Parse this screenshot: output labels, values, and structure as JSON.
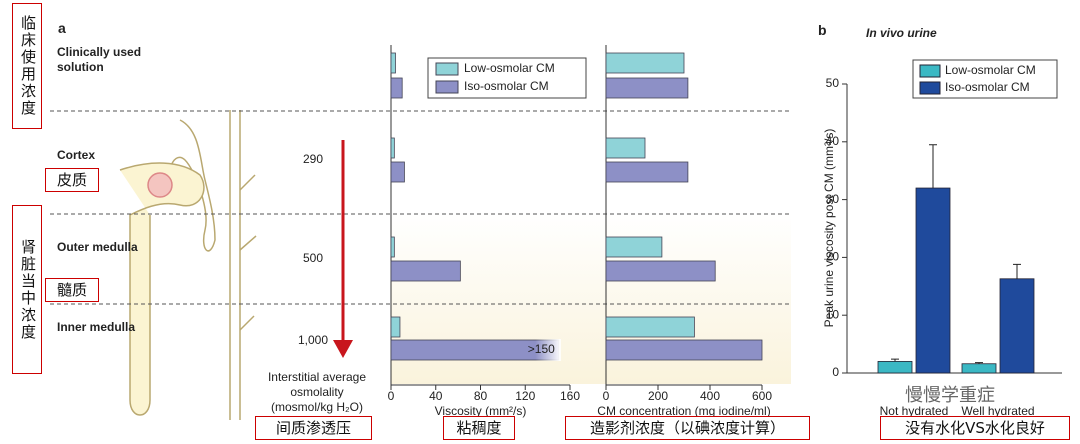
{
  "panel_labels": [
    "a",
    "b"
  ],
  "region_header": "Interstitial average osmolality (mosmol/kg H₂O)",
  "osmolality": [
    "290",
    "500",
    "1,000"
  ],
  "annotations": {
    "clinical": "临床使用浓度",
    "cortex": "皮质",
    "kidney": "肾脏当中浓度",
    "medulla": "髓质",
    "osmolality": "间质渗透压",
    "viscosity": "粘稠度",
    "concentration": "造影剂浓度（以碘浓度计算）",
    "hydration": "没有水化VS水化良好",
    "watermark": "慢慢学重症"
  },
  "chart_data": [
    {
      "type": "hbar",
      "xlabel": "Viscosity (mm²/s)",
      "categories": [
        "Clinically used solution",
        "Cortex",
        "Outer medulla",
        "Inner medulla"
      ],
      "series": [
        {
          "name": "Low-osmolar CM",
          "color": "#8fd3d8",
          "values": [
            4,
            3,
            3,
            8
          ]
        },
        {
          "name": "Iso-osmolar CM",
          "color": "#8d90c6",
          "values": [
            10,
            12,
            62,
            150
          ],
          "value_labels": [
            null,
            null,
            null,
            ">150"
          ]
        }
      ],
      "xlim": [
        0,
        160
      ],
      "xticks": [
        0,
        40,
        80,
        120,
        160
      ]
    },
    {
      "type": "hbar",
      "xlabel": "CM concentration (mg iodine/ml)",
      "series": [
        {
          "color": "#8fd3d8",
          "values": [
            300,
            150,
            215,
            340
          ]
        },
        {
          "color": "#8d90c6",
          "values": [
            315,
            315,
            420,
            600
          ]
        }
      ],
      "xlim": [
        0,
        600
      ],
      "xticks": [
        0,
        200,
        400,
        600
      ]
    },
    {
      "type": "bar",
      "title": "In vivo urine",
      "ylabel": "Peak urine viscosity post CM (mm²/s)",
      "categories": [
        "Not hydrated",
        "Well hydrated"
      ],
      "series": [
        {
          "name": "Low-osmolar CM",
          "color": "#3bb8c4",
          "values": [
            2,
            1.6
          ],
          "errors": [
            0.4,
            0.2
          ]
        },
        {
          "name": "Iso-osmolar CM",
          "color": "#1f4a9c",
          "values": [
            32,
            16.3
          ],
          "errors": [
            7.5,
            2.5
          ]
        }
      ],
      "ylim": [
        0,
        50
      ],
      "yticks": [
        0,
        10,
        20,
        30,
        40,
        50
      ]
    }
  ]
}
